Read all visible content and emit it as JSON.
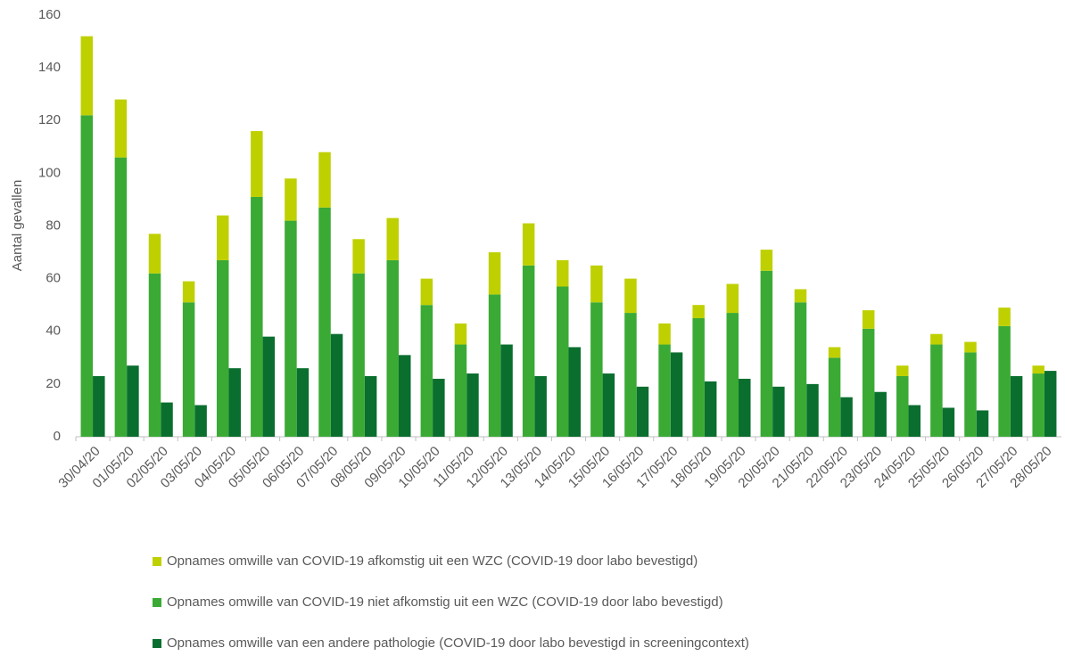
{
  "chart_data": {
    "type": "bar",
    "y_label": "Aantal gevallen",
    "categories": [
      "30/04/20",
      "01/05/20",
      "02/05/20",
      "03/05/20",
      "04/05/20",
      "05/05/20",
      "06/05/20",
      "07/05/20",
      "08/05/20",
      "09/05/20",
      "10/05/20",
      "11/05/20",
      "12/05/20",
      "13/05/20",
      "14/05/20",
      "15/05/20",
      "16/05/20",
      "17/05/20",
      "18/05/20",
      "19/05/20",
      "20/05/20",
      "21/05/20",
      "22/05/20",
      "23/05/20",
      "24/05/20",
      "25/05/20",
      "26/05/20",
      "27/05/20",
      "28/05/20"
    ],
    "series": [
      {
        "name": "Opnames omwille van COVID-19 afkomstig uit een WZC (COVID-19 door labo bevestigd)",
        "color": "#bfd000",
        "stack": "a",
        "values": [
          30,
          22,
          15,
          8,
          17,
          25,
          16,
          21,
          13,
          16,
          10,
          8,
          16,
          16,
          10,
          14,
          13,
          8,
          5,
          11,
          8,
          5,
          4,
          7,
          4,
          4,
          4,
          7,
          3
        ]
      },
      {
        "name": "Opnames omwille van COVID-19 niet afkomstig uit een WZC (COVID-19 door labo bevestigd)",
        "color": "#3aaa35",
        "stack": "a",
        "values": [
          122,
          106,
          62,
          51,
          67,
          91,
          82,
          87,
          62,
          67,
          50,
          35,
          54,
          65,
          57,
          51,
          47,
          35,
          45,
          47,
          63,
          51,
          30,
          41,
          23,
          35,
          32,
          42,
          24
        ]
      },
      {
        "name": "Opnames omwille van een andere pathologie (COVID-19 door labo bevestigd in screeningcontext)",
        "color": "#0a6e2f",
        "stack": "b",
        "values": [
          23,
          27,
          13,
          12,
          26,
          38,
          26,
          39,
          23,
          31,
          22,
          24,
          35,
          23,
          34,
          24,
          19,
          32,
          21,
          22,
          19,
          20,
          15,
          17,
          12,
          11,
          10,
          23,
          25
        ]
      }
    ],
    "ylim": [
      0,
      160
    ],
    "yticks": [
      0,
      20,
      40,
      60,
      80,
      100,
      120,
      140,
      160
    ],
    "grid": false
  }
}
